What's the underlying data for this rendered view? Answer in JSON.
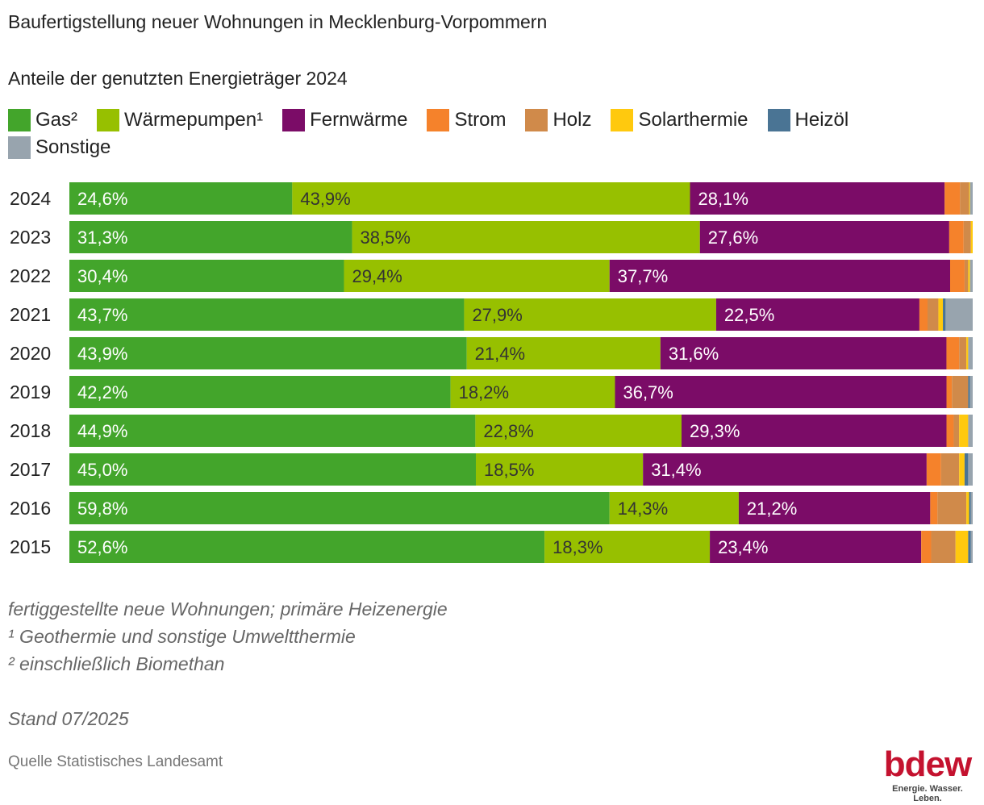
{
  "header": {
    "title": "Baufertigstellung neuer Wohnungen in Mecklenburg-Vorpommern",
    "subtitle": "Anteile der genutzten Energieträger 2024"
  },
  "legend": [
    {
      "label": "Gas²",
      "color": "#43a52b"
    },
    {
      "label": "Wärmepumpen¹",
      "color": "#97c000"
    },
    {
      "label": "Fernwärme",
      "color": "#7b0c67"
    },
    {
      "label": "Strom",
      "color": "#f5822b"
    },
    {
      "label": "Holz",
      "color": "#d08a4a"
    },
    {
      "label": "Solarthermie",
      "color": "#ffc90e"
    },
    {
      "label": "Heizöl",
      "color": "#4a7494"
    },
    {
      "label": "Sonstige",
      "color": "#98a4ae"
    }
  ],
  "chart_data": {
    "type": "bar",
    "orientation": "horizontal",
    "stacked": true,
    "normalized": true,
    "title": "Baufertigstellung neuer Wohnungen in Mecklenburg-Vorpommern",
    "subtitle": "Anteile der genutzten Energieträger 2024",
    "categories": [
      "2024",
      "2023",
      "2022",
      "2021",
      "2020",
      "2019",
      "2018",
      "2017",
      "2016",
      "2015"
    ],
    "xlim": [
      0,
      100
    ],
    "grid": false,
    "legend_position": "top-left",
    "series": [
      {
        "name": "Gas²",
        "color": "#43a52b",
        "values": [
          24.6,
          31.3,
          30.4,
          43.7,
          43.9,
          42.2,
          44.9,
          45.0,
          59.8,
          52.6
        ],
        "labels": [
          "24,6%",
          "31,3%",
          "30,4%",
          "43,7%",
          "43,9%",
          "42,2%",
          "44,9%",
          "45,0%",
          "59,8%",
          "52,6%"
        ],
        "label_color": "#ffffff"
      },
      {
        "name": "Wärmepumpen¹",
        "color": "#97c000",
        "values": [
          43.9,
          38.5,
          29.4,
          27.9,
          21.4,
          18.2,
          22.8,
          18.5,
          14.3,
          18.3
        ],
        "labels": [
          "43,9%",
          "38,5%",
          "29,4%",
          "27,9%",
          "21,4%",
          "18,2%",
          "22,8%",
          "18,5%",
          "14,3%",
          "18,3%"
        ],
        "label_color": "#333333"
      },
      {
        "name": "Fernwärme",
        "color": "#7b0c67",
        "values": [
          28.1,
          27.6,
          37.7,
          22.5,
          31.6,
          36.7,
          29.3,
          31.4,
          21.2,
          23.4
        ],
        "labels": [
          "28,1%",
          "27,6%",
          "37,7%",
          "22,5%",
          "31,6%",
          "36,7%",
          "29,3%",
          "31,4%",
          "21,2%",
          "23,4%"
        ],
        "label_color": "#ffffff"
      },
      {
        "name": "Strom",
        "color": "#f5822b",
        "values": [
          1.7,
          1.6,
          1.6,
          0.9,
          1.4,
          0.6,
          0.8,
          1.6,
          0.8,
          1.1
        ]
      },
      {
        "name": "Holz",
        "color": "#d08a4a",
        "values": [
          1.0,
          0.8,
          0.4,
          1.2,
          0.8,
          1.8,
          0.6,
          2.0,
          3.2,
          2.7
        ]
      },
      {
        "name": "Solarthermie",
        "color": "#ffc90e",
        "values": [
          0.1,
          0.2,
          0.2,
          0.5,
          0.2,
          0.0,
          1.0,
          0.6,
          0.3,
          1.4
        ]
      },
      {
        "name": "Heizöl",
        "color": "#4a7494",
        "values": [
          0.0,
          0.0,
          0.0,
          0.3,
          0.0,
          0.2,
          0.0,
          0.4,
          0.2,
          0.3
        ]
      },
      {
        "name": "Sonstige",
        "color": "#98a4ae",
        "values": [
          0.3,
          0.0,
          0.3,
          3.0,
          0.5,
          0.3,
          0.5,
          0.5,
          0.2,
          0.2
        ]
      }
    ]
  },
  "notes": {
    "line1": "fertiggestellte neue Wohnungen; primäre Heizenergie",
    "line2": "¹ Geothermie und sonstige Umweltthermie",
    "line3": "² einschließlich Biomethan",
    "stand": "Stand 07/2025"
  },
  "source": "Quelle Statistisches Landesamt",
  "logo": {
    "wordmark": "bdew",
    "tagline": "Energie. Wasser. Leben.",
    "color": "#c4122f"
  }
}
